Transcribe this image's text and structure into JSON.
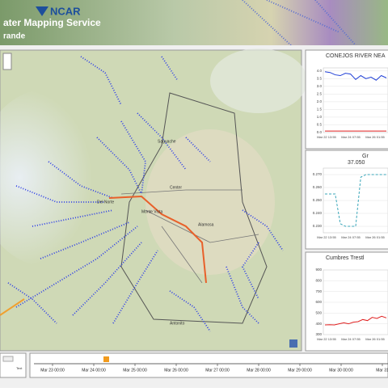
{
  "header": {
    "logo": "NCAR",
    "title": "ater Mapping Service",
    "subtitle": "rande"
  },
  "map": {
    "places": [
      "Saguache",
      "Center",
      "Monte Vista",
      "Alamosa",
      "Del Norte",
      "Antonito"
    ]
  },
  "charts": [
    {
      "type": "line",
      "title": "CONEJOS RIVER NEA",
      "xlabels": [
        "Mar 22 13:55",
        "Mar 24 07:55",
        "Mar 26 01:55"
      ],
      "ylim": [
        0,
        4.2
      ],
      "yticks": [
        {
          "value": 0,
          "label": "0.0"
        },
        {
          "value": 0.5,
          "label": "0.5"
        },
        {
          "value": 1,
          "label": "1.0"
        },
        {
          "value": 1.5,
          "label": "1.5"
        },
        {
          "value": 2,
          "label": "2.0"
        },
        {
          "value": 2.5,
          "label": "2.5"
        },
        {
          "value": 3,
          "label": "3.0"
        },
        {
          "value": 3.5,
          "label": "3.5"
        },
        {
          "value": 4,
          "label": "4.0"
        }
      ],
      "series": [
        {
          "color": "#1f3fd6",
          "dashed": false,
          "values": [
            3.95,
            3.9,
            3.75,
            3.7,
            3.85,
            3.8,
            3.45,
            3.7,
            3.5,
            3.6,
            3.4,
            3.7,
            3.55
          ]
        },
        {
          "color": "#e02020",
          "dashed": false,
          "values": [
            0.1,
            0.1
          ]
        }
      ]
    },
    {
      "type": "line",
      "title": "Gr",
      "subtitle": "37.050",
      "xlabels": [
        "Mar 22 13:55",
        "Mar 24 07:55",
        "Mar 26 01:55"
      ],
      "ylim": [
        0.225,
        0.275
      ],
      "yticks": [
        {
          "value": 0.23,
          "label": "0.230"
        },
        {
          "value": 0.24,
          "label": "0.240"
        },
        {
          "value": 0.25,
          "label": "0.250"
        },
        {
          "value": 0.26,
          "label": "0.260"
        },
        {
          "value": 0.27,
          "label": "0.270"
        }
      ],
      "series": [
        {
          "color": "#3aa6b9",
          "dashed": true,
          "values": [
            0.255,
            0.255,
            0.255,
            0.232,
            0.23,
            0.23,
            0.23,
            0.268,
            0.27,
            0.27,
            0.27,
            0.27,
            0.27
          ]
        }
      ]
    },
    {
      "type": "line",
      "title": "Cumbres Trestl",
      "xlabels": [
        "Mar 22 13:55",
        "Mar 24 07:55",
        "Mar 26 01:55"
      ],
      "ylim": [
        300,
        900
      ],
      "yticks": [
        300,
        400,
        500,
        600,
        700,
        800,
        900
      ],
      "series": [
        {
          "color": "#e02020",
          "dashed": false,
          "values": [
            390,
            392,
            390,
            400,
            410,
            400,
            415,
            420,
            440,
            430,
            460,
            450,
            470,
            455
          ]
        }
      ]
    }
  ],
  "timeline": {
    "control": "Text",
    "labels": [
      "Mar 23 00:00",
      "Mar 24 00:00",
      "Mar 25 00:00",
      "Mar 26 00:00",
      "Mar 27 00:00",
      "Mar 28 00:00",
      "Mar 29 00:00",
      "Mar 30 00:00",
      "Mar 31"
    ]
  }
}
